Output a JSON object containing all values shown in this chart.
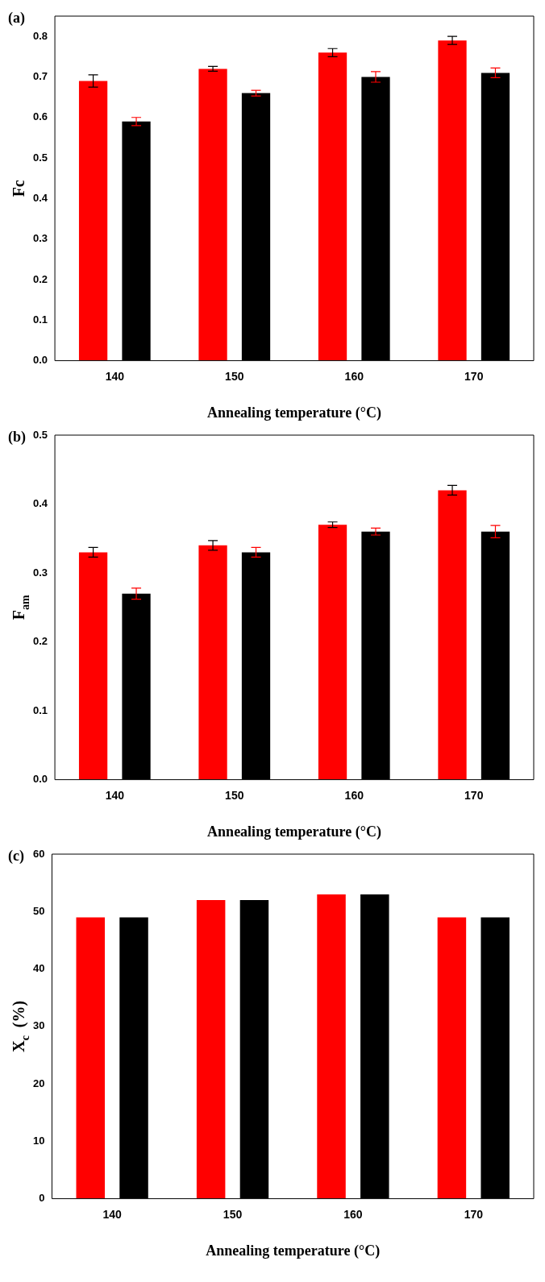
{
  "chart_data": [
    {
      "type": "bar",
      "annotations": [
        "(a)"
      ],
      "xlabel": "Annealing temperature (°C)",
      "ylabel": "Fc",
      "categories": [
        "140",
        "150",
        "160",
        "170"
      ],
      "ylim": [
        0,
        0.85
      ],
      "yticks": [
        {
          "value": 0,
          "label": "0.0"
        },
        0.1,
        0.2,
        0.3,
        0.4,
        0.5,
        0.6,
        0.7,
        0.8
      ],
      "series": [
        {
          "color": "#ff0000",
          "values": [
            0.69,
            0.72,
            0.76,
            0.79
          ],
          "errors": [
            0.015,
            0.006,
            0.01,
            0.01
          ]
        },
        {
          "color": "#000000",
          "values": [
            0.59,
            0.66,
            0.7,
            0.71
          ],
          "errors": [
            0.01,
            0.007,
            0.013,
            0.012
          ]
        }
      ]
    },
    {
      "type": "bar",
      "annotations": [
        "(b)"
      ],
      "xlabel": "Annealing temperature (°C)",
      "ylabel": "F$_{am}$",
      "categories": [
        "140",
        "150",
        "160",
        "170"
      ],
      "ylim": [
        0,
        0.5
      ],
      "yticks": [
        {
          "value": 0,
          "label": "0.0"
        },
        0.1,
        0.2,
        0.3,
        0.4,
        0.5
      ],
      "series": [
        {
          "color": "#ff0000",
          "values": [
            0.33,
            0.34,
            0.37,
            0.42
          ],
          "errors": [
            0.007,
            0.007,
            0.004,
            0.007
          ]
        },
        {
          "color": "#000000",
          "values": [
            0.27,
            0.33,
            0.36,
            0.36
          ],
          "errors": [
            0.008,
            0.007,
            0.005,
            0.009
          ]
        }
      ]
    },
    {
      "type": "bar",
      "annotations": [
        "(c)"
      ],
      "xlabel": "Annealing temperature (°C)",
      "ylabel": "X$_{c}$  (%)",
      "categories": [
        "140",
        "150",
        "160",
        "170"
      ],
      "ylim": [
        0,
        60
      ],
      "yticks": [
        0,
        10,
        20,
        30,
        40,
        50,
        60
      ],
      "series": [
        {
          "color": "#ff0000",
          "values": [
            49,
            52,
            53,
            49
          ]
        },
        {
          "color": "#000000",
          "values": [
            49,
            52,
            53,
            49
          ]
        }
      ]
    }
  ]
}
